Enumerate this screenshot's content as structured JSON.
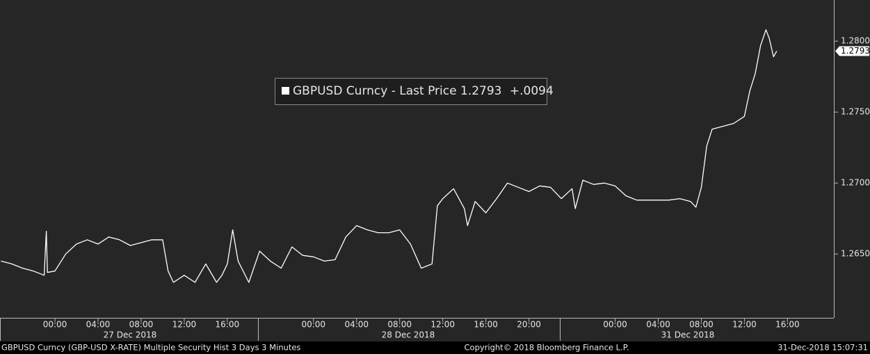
{
  "chart_data": {
    "type": "line",
    "series": [
      {
        "name": "GBPUSD Curncy - Last Price",
        "color": "#ffffff",
        "values": [
          1.2645,
          1.2643,
          1.264,
          1.2638,
          1.2635,
          1.2666,
          1.2637,
          1.2638,
          1.265,
          1.2657,
          1.266,
          1.2657,
          1.2662,
          1.266,
          1.2656,
          1.2658,
          1.266,
          1.266,
          1.2638,
          1.263,
          1.2635,
          1.263,
          1.2643,
          1.263,
          1.2635,
          1.2643,
          1.2667,
          1.2645,
          1.263,
          1.2652,
          1.2645,
          1.264,
          1.2655,
          1.2649,
          1.2648,
          1.2645,
          1.2646,
          1.2662,
          1.267,
          1.2667,
          1.2665,
          1.2665,
          1.2667,
          1.2657,
          1.264,
          1.2643,
          1.2684,
          1.2689,
          1.2696,
          1.2682,
          1.267,
          1.2687,
          1.2679,
          1.2689,
          1.27,
          1.2697,
          1.2694,
          1.2698,
          1.2697,
          1.2689,
          1.2696,
          1.2682,
          1.2702,
          1.2699,
          1.27,
          1.2698,
          1.2691,
          1.2688,
          1.2688,
          1.2688,
          1.2688,
          1.2689,
          1.2687,
          1.2683,
          1.2697,
          1.2726,
          1.2738,
          1.274,
          1.2742,
          1.2747,
          1.2765,
          1.2777,
          1.2797,
          1.2808,
          1.2802,
          1.2789,
          1.2793
        ]
      }
    ],
    "x": [
      -5,
      -4,
      -3,
      -2,
      -1,
      -0.8,
      -0.7,
      0,
      1,
      2,
      3,
      4,
      5,
      6,
      7,
      8,
      9,
      10,
      10.5,
      11,
      12,
      13,
      14,
      15,
      15.5,
      16,
      16.5,
      17,
      18,
      19,
      20,
      21,
      22,
      23,
      24,
      25,
      26,
      27,
      28,
      29,
      30,
      31,
      32,
      33,
      34,
      35,
      35.5,
      36,
      37,
      38,
      38.3,
      39,
      40,
      41,
      42,
      43,
      44,
      45,
      46,
      47,
      48,
      48.3,
      49,
      50,
      51,
      52,
      53,
      54,
      55,
      56,
      57,
      58,
      59,
      59.5,
      60,
      60.5,
      61,
      62,
      63,
      64,
      64.5,
      65,
      65.5,
      66,
      66.3,
      66.7,
      67
    ],
    "last_price": 1.2793,
    "change": "+.0094",
    "xlim": [
      -5.1,
      72.3
    ],
    "xticks": [
      {
        "value": 0,
        "label": "00:00"
      },
      {
        "value": 4,
        "label": "04:00"
      },
      {
        "value": 8,
        "label": "08:00"
      },
      {
        "value": 12,
        "label": "12:00"
      },
      {
        "value": 16,
        "label": "16:00"
      },
      {
        "value": 24,
        "label": "00:00"
      },
      {
        "value": 28,
        "label": "04:00"
      },
      {
        "value": 32,
        "label": "08:00"
      },
      {
        "value": 36,
        "label": "12:00"
      },
      {
        "value": 40,
        "label": "16:00"
      },
      {
        "value": 44,
        "label": "20:00"
      },
      {
        "value": 52,
        "label": "00:00"
      },
      {
        "value": 56,
        "label": "04:00"
      },
      {
        "value": 60,
        "label": "08:00"
      },
      {
        "value": 64,
        "label": "12:00"
      },
      {
        "value": 68,
        "label": "16:00"
      }
    ],
    "date_labels": [
      "27 Dec 2018",
      "28 Dec 2018",
      "31 Dec 2018"
    ],
    "ylim": [
      1.2605,
      1.2829
    ],
    "yticks": [
      {
        "value": 1.265,
        "label": "1.2650"
      },
      {
        "value": 1.27,
        "label": "1.2700"
      },
      {
        "value": 1.275,
        "label": "1.2750"
      },
      {
        "value": 1.28,
        "label": "1.2800"
      }
    ],
    "footer_left": "GBPUSD Curncy (GBP-USD X-RATE) Multiple Security Hist  3 Days 3 Minutes",
    "footer_center": "Copyright© 2018 Bloomberg Finance L.P.",
    "footer_right": "31-Dec-2018 15:07:31"
  }
}
